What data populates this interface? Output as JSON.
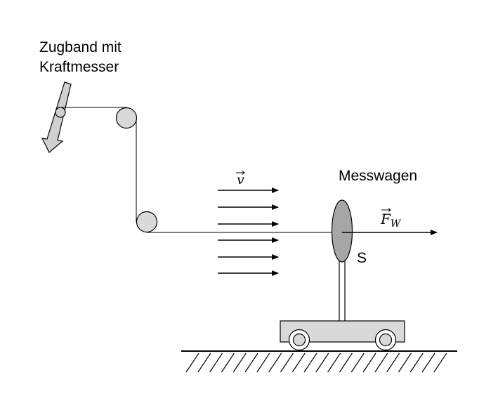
{
  "labels": {
    "zugband_line1": "Zugband mit",
    "zugband_line2": "Kraftmesser",
    "messwagen": "Messwagen",
    "point_s": "S",
    "velocity_symbol": "v",
    "force_symbol": "F",
    "force_subscript": "W"
  },
  "colors": {
    "line": "#000000",
    "pulley_fill": "#d9d9d9",
    "body_fill": "#a6a6a6",
    "cart_fill": "#d9d9d9",
    "force_meter_fill": "#d0d0d0"
  }
}
